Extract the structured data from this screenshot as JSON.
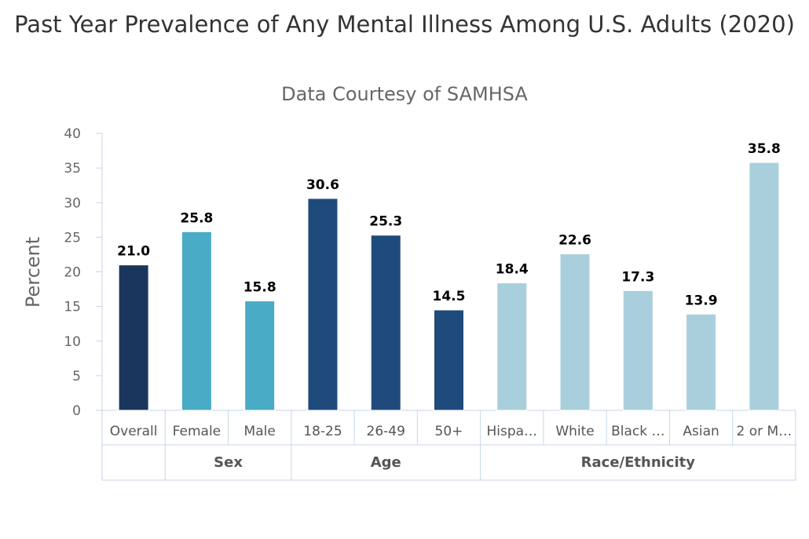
{
  "chart_data": {
    "type": "bar",
    "title": "Past Year Prevalence of Any Mental Illness Among U.S. Adults (2020)",
    "subtitle": "Data Courtesy of SAMHSA",
    "ylabel": "Percent",
    "xlabel": "",
    "ylim": [
      0,
      40
    ],
    "yticks": [
      0,
      5,
      10,
      15,
      20,
      25,
      30,
      35,
      40
    ],
    "categories": [
      "Overall",
      "Female",
      "Male",
      "18-25",
      "26-49",
      "50+",
      "Hispa…",
      "White",
      "Black …",
      "Asian",
      "2 or M…"
    ],
    "values": [
      21.0,
      25.8,
      15.8,
      30.6,
      25.3,
      14.5,
      18.4,
      22.6,
      17.3,
      13.9,
      35.8
    ],
    "value_labels": [
      "21.0",
      "25.8",
      "15.8",
      "30.6",
      "25.3",
      "14.5",
      "18.4",
      "22.6",
      "17.3",
      "13.9",
      "35.8"
    ],
    "groups": [
      {
        "name": "",
        "count": 1
      },
      {
        "name": "Sex",
        "count": 2
      },
      {
        "name": "Age",
        "count": 3
      },
      {
        "name": "Race/Ethnicity",
        "count": 5
      }
    ],
    "bar_colors": [
      "#1b365d",
      "#4aabc6",
      "#4aabc6",
      "#1f4a7c",
      "#1f4a7c",
      "#1f4a7c",
      "#a9cfdd",
      "#a9cfdd",
      "#a9cfdd",
      "#a9cfdd",
      "#a9cfdd"
    ],
    "grid": false
  }
}
